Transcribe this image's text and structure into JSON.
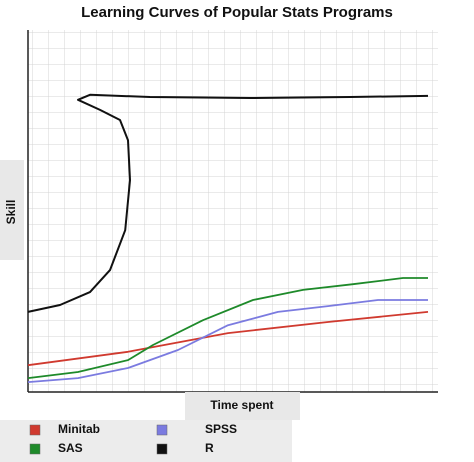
{
  "chart_data": {
    "type": "line",
    "title": "Learning Curves of Popular Stats Programs",
    "x_label": "Time spent",
    "y_label": "Skill",
    "xlim": [
      0,
      100
    ],
    "ylim": [
      0,
      100
    ],
    "series": [
      {
        "name": "Minitab",
        "color": "#d03a2f",
        "x": [
          0,
          25,
          50,
          75,
          100
        ],
        "values": [
          6.9,
          10.6,
          15.8,
          18.9,
          21.7
        ]
      },
      {
        "name": "SAS",
        "color": "#1e8a2a",
        "x": [
          0,
          12.5,
          25,
          31.25,
          43.75,
          56.25,
          68.75,
          81.25,
          93.75,
          100
        ],
        "values": [
          3.3,
          5,
          8.3,
          12.5,
          19.4,
          25,
          27.8,
          29.4,
          31.1,
          31.1
        ]
      },
      {
        "name": "SPSS",
        "color": "#7b7be0",
        "x": [
          0,
          12.5,
          25,
          37.5,
          50,
          62.5,
          75,
          87.5,
          100
        ],
        "values": [
          2.2,
          3.3,
          6.1,
          11.1,
          18,
          21.7,
          23.3,
          25,
          25
        ]
      },
      {
        "name": "R",
        "color": "#111111",
        "x": [
          0,
          8,
          15.5,
          20.5,
          24.3,
          25.5,
          25,
          23,
          18,
          12.5,
          15.5,
          30.5,
          55.5,
          80.5,
          100
        ],
        "values": [
          21.7,
          23.6,
          27.2,
          33.3,
          44.4,
          58.3,
          69.4,
          75,
          77.8,
          80.6,
          82,
          81.4,
          81.1,
          81.4,
          81.7
        ]
      }
    ]
  }
}
